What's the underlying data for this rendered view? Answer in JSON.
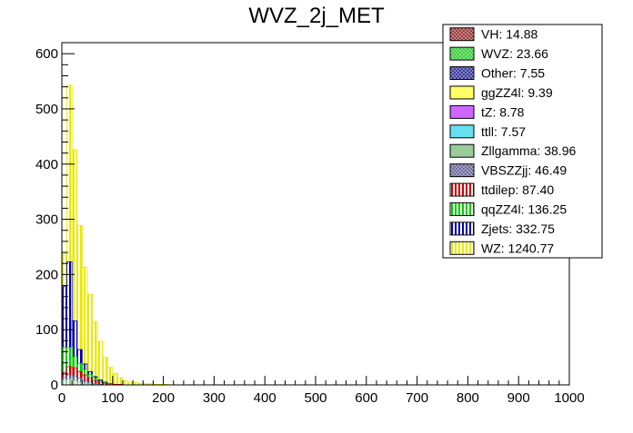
{
  "chart_data": {
    "type": "bar",
    "stacked": true,
    "title": "WVZ_2j_MET",
    "xlabel": "",
    "ylabel": "",
    "xlim": [
      0,
      1000
    ],
    "ylim": [
      0,
      620
    ],
    "bin_width": 10,
    "x_ticks": [
      "0",
      "100",
      "200",
      "300",
      "400",
      "500",
      "600",
      "700",
      "800",
      "900",
      "1000"
    ],
    "y_ticks": [
      "0",
      "100",
      "200",
      "300",
      "400",
      "500",
      "600"
    ],
    "legend_position": "top-right",
    "legend": [
      {
        "label": "VH: 14.88",
        "color": "#993333",
        "pattern": "cross"
      },
      {
        "label": "WVZ: 23.66",
        "color": "#33cc33",
        "pattern": "cross"
      },
      {
        "label": "Other: 7.55",
        "color": "#333399",
        "pattern": "cross"
      },
      {
        "label": "ggZZ4l: 9.39",
        "color": "#ffff66",
        "pattern": "solid"
      },
      {
        "label": "tZ: 8.78",
        "color": "#cc66ff",
        "pattern": "solid"
      },
      {
        "label": "ttll: 7.57",
        "color": "#66e0f0",
        "pattern": "solid"
      },
      {
        "label": "Zllgamma: 38.96",
        "color": "#99cc99",
        "pattern": "solid"
      },
      {
        "label": "VBSZZjj: 46.49",
        "color": "#666699",
        "pattern": "cross"
      },
      {
        "label": "ttdilep: 87.40",
        "color": "#cc0000",
        "pattern": "vertical"
      },
      {
        "label": "qqZZ4l: 136.25",
        "color": "#00cc00",
        "pattern": "vertical"
      },
      {
        "label": "Zjets: 332.75",
        "color": "#0000aa",
        "pattern": "vertical"
      },
      {
        "label": "WZ: 1240.77",
        "color": "#e8e800",
        "pattern": "vertical"
      }
    ],
    "series": [
      {
        "name": "Zllgamma",
        "color": "#99cc99",
        "values": [
          8,
          10,
          8,
          5,
          3,
          2,
          1
        ]
      },
      {
        "name": "VBSZZjj",
        "color": "#666699",
        "values": [
          5,
          8,
          8,
          7,
          5,
          3,
          2,
          1
        ]
      },
      {
        "name": "ttdilep",
        "color": "#cc0000",
        "values": [
          10,
          15,
          15,
          12,
          10,
          8,
          5,
          4,
          3,
          2,
          1,
          1
        ]
      },
      {
        "name": "qqZZ4l",
        "color": "#00cc00",
        "values": [
          45,
          35,
          20,
          15,
          10,
          6,
          4,
          2,
          1
        ]
      },
      {
        "name": "Zjets",
        "color": "#0000aa",
        "values": [
          110,
          155,
          65,
          25,
          10,
          5,
          3,
          2,
          1
        ]
      },
      {
        "name": "WZ",
        "color": "#e8e800",
        "values": [
          60,
          320,
          310,
          225,
          175,
          140,
          100,
          70,
          45,
          30,
          20,
          12,
          8,
          5,
          4,
          3,
          2,
          2,
          1,
          1,
          1
        ]
      }
    ]
  }
}
